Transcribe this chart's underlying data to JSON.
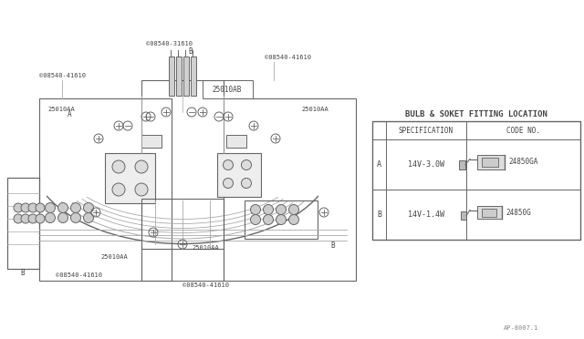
{
  "fig_bg": "#ffffff",
  "line_color": "#aaaaaa",
  "dark_line": "#666666",
  "text_color": "#444444",
  "table_title": "BULB & SOKET FITTING LOCATION",
  "col1_header": "SPECIFICATION",
  "col2_header": "CODE NO.",
  "row_a_label": "A",
  "row_b_label": "B",
  "row_a_spec": "14V-3.0W",
  "row_b_spec": "14V-1.4W",
  "row_a_code": "24850GA",
  "row_b_code": "24850G",
  "ref_label": "AP-8007.1",
  "labels": {
    "s08540_31610_top": "©08540-31610",
    "s08540_41610_topright": "©08540-41610",
    "s08540_41610_left": "©08540-41610",
    "s08540_41610_botleft": "©08540-41610",
    "s08540_41610_botcenter": "©08540-41610",
    "label_25010AB": "25010AB",
    "label_25010AA_tl": "25010AA",
    "label_25010AA_tr": "25010AA",
    "label_25010AA_bl": "25010AA",
    "label_25010AA_bc": "25010AA",
    "A_left": "A",
    "B_top": "B",
    "B_botleft": "B",
    "B_botright": "B"
  }
}
